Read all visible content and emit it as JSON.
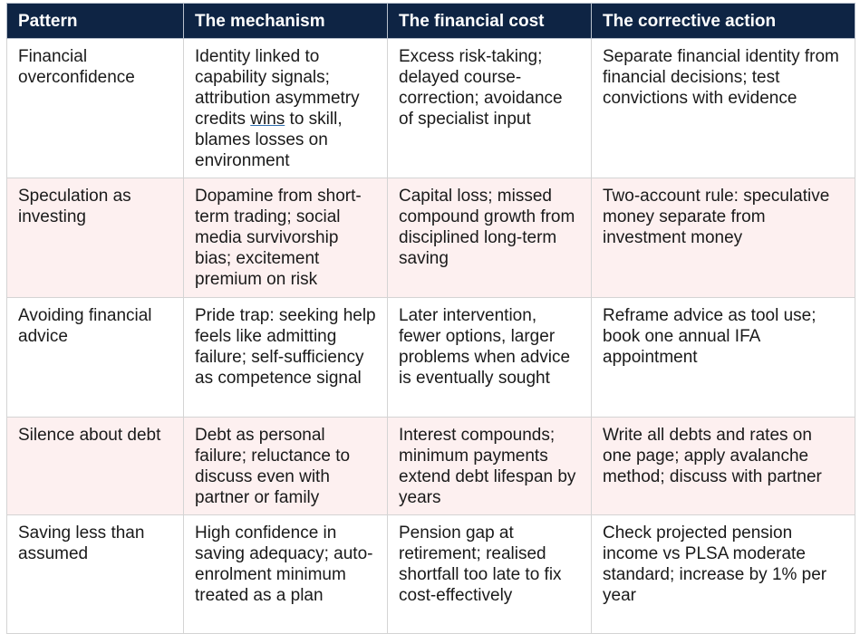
{
  "headers": [
    "Pattern",
    "The mechanism",
    "The financial cost",
    "The corrective action"
  ],
  "rows": [
    {
      "pattern": "Financial overconfidence",
      "mechanism_pre": "Identity linked to capability signals; attribution asymmetry credits ",
      "mechanism_mark": "wins",
      "mechanism_post": " to skill, blames losses on environment",
      "cost": "Excess risk-taking; delayed course-correction; avoidance of specialist input",
      "action": "Separate financial identity from financial decisions; test convictions with evidence"
    },
    {
      "pattern": "Speculation as investing",
      "mechanism": "Dopamine from short-term trading; social media survivorship bias; excitement premium on risk",
      "cost": "Capital loss; missed compound growth from disciplined long-term saving",
      "action": "Two-account rule: speculative money separate from investment money"
    },
    {
      "pattern": "Avoiding financial advice",
      "mechanism": "Pride trap: seeking help feels like admitting failure; self-sufficiency as competence signal",
      "cost": "Later intervention, fewer options, larger problems when advice is eventually sought",
      "action": "Reframe advice as tool use; book one annual IFA appointment"
    },
    {
      "pattern": "Silence about debt",
      "mechanism": "Debt as personal failure; reluctance to discuss even with partner or family",
      "cost": "Interest compounds; minimum payments extend debt lifespan by years",
      "action": "Write all debts and rates on one page; apply avalanche method; discuss with partner"
    },
    {
      "pattern": "Saving less than assumed",
      "mechanism": "High confidence in saving adequacy; auto-enrolment minimum treated as a plan",
      "cost": "Pension gap at retirement; realised shortfall too late to fix cost-effectively",
      "action": "Check projected pension income vs PLSA moderate standard; increase by 1% per year"
    }
  ]
}
